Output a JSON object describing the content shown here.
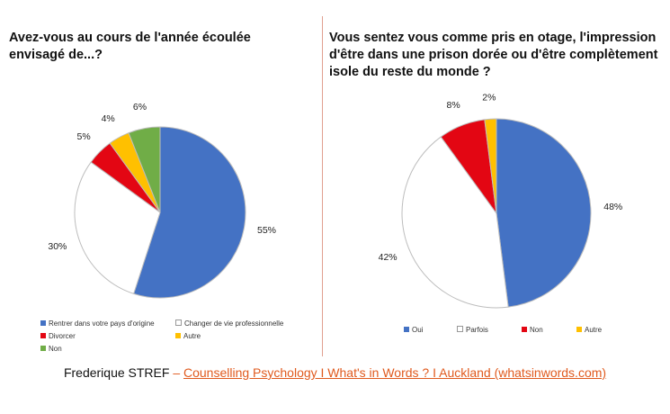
{
  "chart_data": [
    {
      "type": "pie",
      "title": "Avez-vous au cours de l'année écoulée envisagé de...?",
      "slices": [
        {
          "label": "Rentrer dans votre pays d'origine",
          "value": 55,
          "display": "55%",
          "color": "#4472c4"
        },
        {
          "label": "Changer de vie professionnelle",
          "value": 30,
          "display": "30%",
          "color": "#ffffff"
        },
        {
          "label": "Divorcer",
          "value": 5,
          "display": "5%",
          "color": "#e30613"
        },
        {
          "label": "Autre",
          "value": 4,
          "display": "4%",
          "color": "#ffc000"
        },
        {
          "label": "Non",
          "value": 6,
          "display": "6%",
          "color": "#70ad47"
        }
      ],
      "legend": "bottom"
    },
    {
      "type": "pie",
      "title": "Vous sentez vous comme pris en otage, l'impression d'être dans une prison dorée ou d'être complètement isole du reste du monde ?",
      "slices": [
        {
          "label": "Oui",
          "value": 48,
          "display": "48%",
          "color": "#4472c4"
        },
        {
          "label": "Parfois",
          "value": 42,
          "display": "42%",
          "color": "#ffffff"
        },
        {
          "label": "Non",
          "value": 8,
          "display": "8%",
          "color": "#e30613"
        },
        {
          "label": "Autre",
          "value": 2,
          "display": "2%",
          "color": "#ffc000"
        }
      ],
      "legend": "bottom"
    }
  ],
  "footer": {
    "author": "Frederique STREF",
    "separator": "–",
    "link_text": "Counselling Psychology I What's in Words ? I Auckland (whatsinwords.com)"
  }
}
